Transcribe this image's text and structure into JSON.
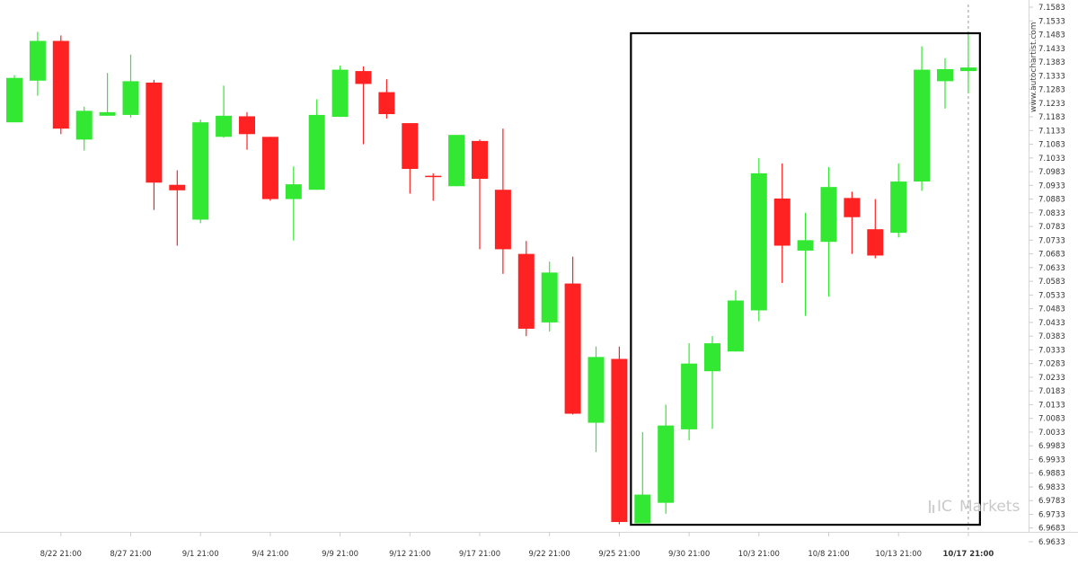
{
  "watermark": {
    "side_text": "www.autochartist.com",
    "brand_prefix": "IC",
    "brand_name": "Markets"
  },
  "colors": {
    "up": "#33e833",
    "down": "#ff2222",
    "frame": "#000000",
    "axis_text": "#333333"
  },
  "chart_data": {
    "type": "candlestick",
    "title": "",
    "xlabel": "",
    "ylabel": "",
    "ylim": [
      6.9633,
      7.1583
    ],
    "y_ticks": [
      "7.1583",
      "7.1533",
      "7.1483",
      "7.1433",
      "7.1383",
      "7.1333",
      "7.1283",
      "7.1233",
      "7.1183",
      "7.1133",
      "7.1083",
      "7.1033",
      "7.0983",
      "7.0933",
      "7.0883",
      "7.0833",
      "7.0783",
      "7.0733",
      "7.0683",
      "7.0633",
      "7.0583",
      "7.0533",
      "7.0483",
      "7.0433",
      "7.0383",
      "7.0333",
      "7.0283",
      "7.0233",
      "7.0183",
      "7.0133",
      "7.0083",
      "7.0033",
      "6.9983",
      "6.9933",
      "6.9883",
      "6.9833",
      "6.9783",
      "6.9733",
      "6.9683",
      "6.9633"
    ],
    "x_tick_labels": [
      {
        "label": "8/22 21:00",
        "index": 2
      },
      {
        "label": "8/27 21:00",
        "index": 5
      },
      {
        "label": "9/1 21:00",
        "index": 8
      },
      {
        "label": "9/4 21:00",
        "index": 11
      },
      {
        "label": "9/9 21:00",
        "index": 14
      },
      {
        "label": "9/12 21:00",
        "index": 17
      },
      {
        "label": "9/17 21:00",
        "index": 20
      },
      {
        "label": "9/22 21:00",
        "index": 23
      },
      {
        "label": "9/25 21:00",
        "index": 26
      },
      {
        "label": "9/30 21:00",
        "index": 29
      },
      {
        "label": "10/3 21:00",
        "index": 32
      },
      {
        "label": "10/8 21:00",
        "index": 35
      },
      {
        "label": "10/13 21:00",
        "index": 38
      },
      {
        "label": "10/17 21:00",
        "index": 41,
        "bold": true
      }
    ],
    "highlight_range": {
      "start_index": 26.5,
      "end_index": 41.5,
      "y_low": 6.9695,
      "y_high": 7.1488
    },
    "current_index": 41,
    "candles": [
      {
        "o": 7.1163,
        "h": 7.1335,
        "l": 7.1163,
        "c": 7.1325
      },
      {
        "o": 7.1315,
        "h": 7.1493,
        "l": 7.126,
        "c": 7.146
      },
      {
        "o": 7.146,
        "h": 7.148,
        "l": 7.112,
        "c": 7.114
      },
      {
        "o": 7.11,
        "h": 7.122,
        "l": 7.106,
        "c": 7.1205
      },
      {
        "o": 7.1187,
        "h": 7.1343,
        "l": 7.1187,
        "c": 7.12
      },
      {
        "o": 7.119,
        "h": 7.141,
        "l": 7.118,
        "c": 7.1313
      },
      {
        "o": 7.1308,
        "h": 7.1318,
        "l": 7.0843,
        "c": 7.0943
      },
      {
        "o": 7.0935,
        "h": 7.0988,
        "l": 7.0713,
        "c": 7.0915
      },
      {
        "o": 7.0808,
        "h": 7.1173,
        "l": 7.0795,
        "c": 7.1163
      },
      {
        "o": 7.111,
        "h": 7.1297,
        "l": 7.1107,
        "c": 7.1187
      },
      {
        "o": 7.1185,
        "h": 7.12,
        "l": 7.1063,
        "c": 7.112
      },
      {
        "o": 7.111,
        "h": 7.111,
        "l": 7.0877,
        "c": 7.0883
      },
      {
        "o": 7.0883,
        "h": 7.1002,
        "l": 7.0732,
        "c": 7.0937
      },
      {
        "o": 7.0917,
        "h": 7.1247,
        "l": 7.0917,
        "c": 7.119
      },
      {
        "o": 7.1183,
        "h": 7.137,
        "l": 7.1183,
        "c": 7.1355
      },
      {
        "o": 7.135,
        "h": 7.1367,
        "l": 7.1083,
        "c": 7.1303
      },
      {
        "o": 7.1273,
        "h": 7.132,
        "l": 7.1177,
        "c": 7.1193
      },
      {
        "o": 7.116,
        "h": 7.116,
        "l": 7.0903,
        "c": 7.0993
      },
      {
        "o": 7.0968,
        "h": 7.0977,
        "l": 7.0877,
        "c": 7.0965
      },
      {
        "o": 7.093,
        "h": 7.1117,
        "l": 7.093,
        "c": 7.1117
      },
      {
        "o": 7.1095,
        "h": 7.11,
        "l": 7.07,
        "c": 7.0957
      },
      {
        "o": 7.0917,
        "h": 7.114,
        "l": 7.061,
        "c": 7.07
      },
      {
        "o": 7.0683,
        "h": 7.073,
        "l": 7.0383,
        "c": 7.041
      },
      {
        "o": 7.0433,
        "h": 7.0655,
        "l": 7.04,
        "c": 7.0615
      },
      {
        "o": 7.0575,
        "h": 7.0673,
        "l": 7.0097,
        "c": 7.01
      },
      {
        "o": 7.0067,
        "h": 7.0345,
        "l": 6.996,
        "c": 7.0307
      },
      {
        "o": 7.03,
        "h": 7.0345,
        "l": 6.9697,
        "c": 6.9705
      },
      {
        "o": 6.97,
        "h": 7.0033,
        "l": 6.97,
        "c": 6.9805
      },
      {
        "o": 6.9775,
        "h": 7.0133,
        "l": 6.9735,
        "c": 7.0057
      },
      {
        "o": 7.0043,
        "h": 7.0357,
        "l": 7.0003,
        "c": 7.0283
      },
      {
        "o": 7.0255,
        "h": 7.0383,
        "l": 7.0045,
        "c": 7.0357
      },
      {
        "o": 7.0327,
        "h": 7.055,
        "l": 7.0327,
        "c": 7.0513
      },
      {
        "o": 7.0477,
        "h": 7.1033,
        "l": 7.0437,
        "c": 7.0977
      },
      {
        "o": 7.0885,
        "h": 7.1013,
        "l": 7.0577,
        "c": 7.0713
      },
      {
        "o": 7.0695,
        "h": 7.0833,
        "l": 7.0457,
        "c": 7.0733
      },
      {
        "o": 7.0727,
        "h": 7.1,
        "l": 7.0527,
        "c": 7.0927
      },
      {
        "o": 7.0887,
        "h": 7.091,
        "l": 7.0683,
        "c": 7.0817
      },
      {
        "o": 7.0773,
        "h": 7.0883,
        "l": 7.0667,
        "c": 7.0677
      },
      {
        "o": 7.076,
        "h": 7.1013,
        "l": 7.0743,
        "c": 7.0947
      },
      {
        "o": 7.0947,
        "h": 7.144,
        "l": 7.0913,
        "c": 7.1355
      },
      {
        "o": 7.1313,
        "h": 7.1397,
        "l": 7.1213,
        "c": 7.1357
      },
      {
        "o": 7.135,
        "h": 7.1493,
        "l": 7.127,
        "c": 7.1363
      }
    ]
  }
}
